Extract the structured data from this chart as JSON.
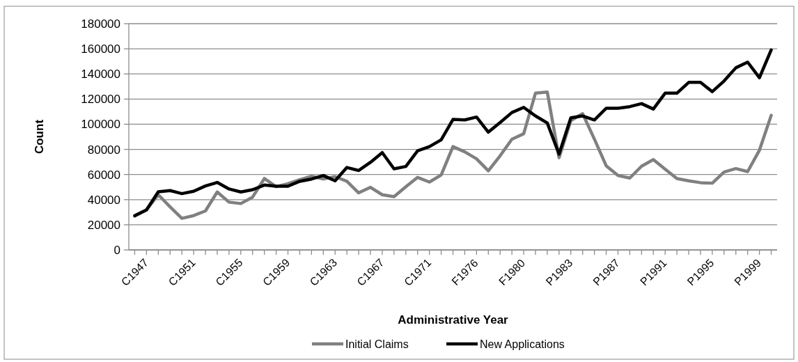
{
  "chart_data": {
    "type": "line",
    "xlabel": "Administrative Year",
    "ylabel": "Count",
    "categories": [
      "C1947",
      null,
      null,
      null,
      "C1951",
      null,
      null,
      null,
      "C1955",
      null,
      null,
      null,
      "C1959",
      null,
      null,
      null,
      "C1963",
      null,
      null,
      null,
      "C1967",
      null,
      null,
      null,
      "C1971",
      null,
      null,
      null,
      "F1976",
      null,
      null,
      null,
      "F1980",
      null,
      null,
      null,
      "P1983",
      null,
      null,
      null,
      "P1987",
      null,
      null,
      null,
      "P1991",
      null,
      null,
      null,
      "P1995",
      null,
      null,
      null,
      "P1999",
      null,
      null
    ],
    "series": [
      {
        "name": "Initial Claims",
        "color": "#808080",
        "values": [
          26900,
          31900,
          43900,
          34300,
          25100,
          27300,
          31000,
          46100,
          38000,
          36900,
          42000,
          56800,
          50300,
          52700,
          55900,
          58600,
          56400,
          58300,
          54600,
          45400,
          49800,
          43900,
          42400,
          50300,
          57700,
          54000,
          59600,
          82200,
          78000,
          72500,
          62900,
          74900,
          88100,
          92400,
          124700,
          125600,
          73400,
          102900,
          108400,
          88100,
          66900,
          59200,
          57200,
          66600,
          71900,
          64200,
          56800,
          55000,
          53500,
          53100,
          62000,
          64700,
          62300,
          79300,
          107100
        ]
      },
      {
        "name": "New Applications",
        "color": "#000000",
        "values": [
          27300,
          31900,
          46300,
          47200,
          44800,
          46700,
          50900,
          53700,
          48500,
          46100,
          47900,
          51600,
          50700,
          50700,
          54600,
          56400,
          59200,
          55000,
          65600,
          63200,
          69700,
          77400,
          64500,
          66400,
          78900,
          82200,
          87600,
          103800,
          103400,
          105700,
          93700,
          101400,
          109300,
          113400,
          106600,
          101000,
          76200,
          105100,
          106600,
          103400,
          112700,
          112700,
          114000,
          116400,
          112100,
          124700,
          124700,
          133300,
          133300,
          125900,
          134400,
          144900,
          149400,
          137000,
          159100
        ]
      }
    ],
    "ylim": [
      0,
      180000
    ],
    "yticks": [
      0,
      20000,
      40000,
      60000,
      80000,
      100000,
      120000,
      140000,
      160000,
      180000
    ],
    "grid": "y",
    "legend": "bottom",
    "marker": "none",
    "line_style": "solid"
  }
}
